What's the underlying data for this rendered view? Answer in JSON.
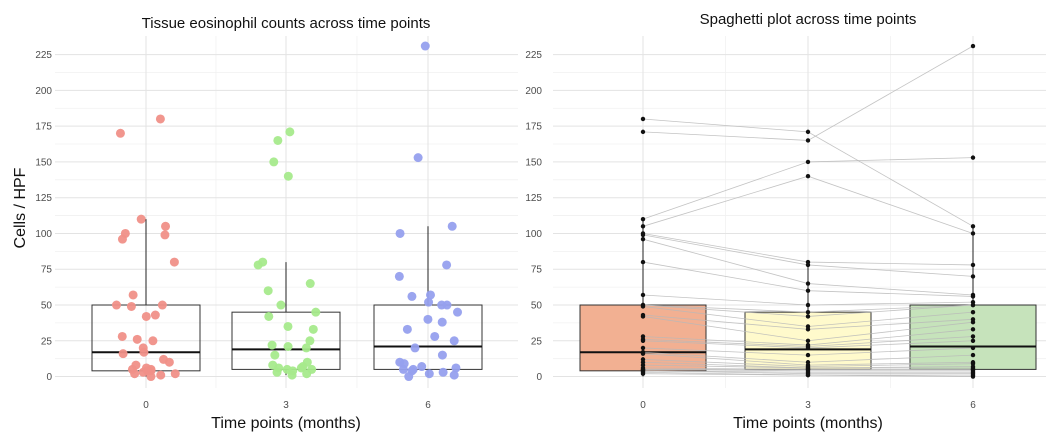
{
  "chart_data": [
    {
      "type": "boxplot-jitter",
      "title": "Tissue eosinophil counts across time points",
      "xlabel": "Time points (months)",
      "ylabel": "Cells / HPF",
      "categories": [
        "0",
        "3",
        "6"
      ],
      "ylim": [
        -8,
        238
      ],
      "yticks": [
        0,
        25,
        50,
        75,
        100,
        125,
        150,
        175,
        200,
        225
      ],
      "grid": true,
      "series_colors": [
        "#f09088",
        "#a6ea8c",
        "#96a0ee"
      ],
      "boxes": [
        {
          "category": "0",
          "q1": 4,
          "median": 17,
          "q3": 50,
          "whisker_low": 0,
          "whisker_high": 110
        },
        {
          "category": "3",
          "q1": 5,
          "median": 19,
          "q3": 45,
          "whisker_low": 1,
          "whisker_high": 80
        },
        {
          "category": "6",
          "q1": 5,
          "median": 21,
          "q3": 50,
          "whisker_low": 0,
          "whisker_high": 105
        }
      ],
      "points": [
        {
          "category": "0",
          "values": [
            180,
            170,
            110,
            105,
            100,
            99,
            96,
            80,
            57,
            50,
            50,
            49,
            43,
            42,
            28,
            26,
            25,
            20,
            17,
            16,
            12,
            10,
            8,
            6,
            5,
            5,
            4,
            4,
            3,
            2,
            2,
            1,
            0
          ]
        },
        {
          "category": "3",
          "values": [
            171,
            165,
            150,
            140,
            80,
            78,
            65,
            60,
            50,
            45,
            42,
            35,
            33,
            25,
            22,
            21,
            20,
            15,
            10,
            8,
            7,
            6,
            6,
            5,
            5,
            4,
            3,
            2,
            1
          ]
        },
        {
          "category": "6",
          "values": [
            231,
            153,
            105,
            100,
            78,
            70,
            57,
            56,
            52,
            50,
            50,
            45,
            40,
            38,
            33,
            28,
            25,
            20,
            15,
            10,
            9,
            7,
            6,
            5,
            5,
            4,
            3,
            2,
            1,
            0
          ]
        }
      ]
    },
    {
      "type": "spaghetti-boxplot",
      "title": "Spaghetti plot across time points",
      "xlabel": "Time points (months)",
      "ylabel": "",
      "categories": [
        "0",
        "3",
        "6"
      ],
      "ylim": [
        -8,
        238
      ],
      "yticks": [
        0,
        25,
        50,
        75,
        100,
        125,
        150,
        175,
        200,
        225
      ],
      "grid": true,
      "box_fill_colors": [
        "#f2b092",
        "#fffacc",
        "#c6e3bb"
      ],
      "boxes": [
        {
          "category": "0",
          "q1": 4,
          "median": 17,
          "q3": 50,
          "whisker_low": 0,
          "whisker_high": 110
        },
        {
          "category": "3",
          "q1": 5,
          "median": 19,
          "q3": 45,
          "whisker_low": 1,
          "whisker_high": 80
        },
        {
          "category": "6",
          "q1": 5,
          "median": 21,
          "q3": 50,
          "whisker_low": 0,
          "whisker_high": 105
        }
      ],
      "subjects": [
        [
          180,
          171,
          105
        ],
        [
          171,
          165,
          231
        ],
        [
          110,
          150,
          153
        ],
        [
          105,
          140,
          100
        ],
        [
          100,
          80,
          78
        ],
        [
          99,
          78,
          70
        ],
        [
          96,
          65,
          57
        ],
        [
          80,
          60,
          56
        ],
        [
          57,
          50,
          52
        ],
        [
          50,
          45,
          50
        ],
        [
          50,
          42,
          50
        ],
        [
          49,
          35,
          45
        ],
        [
          43,
          33,
          40
        ],
        [
          42,
          25,
          38
        ],
        [
          28,
          22,
          33
        ],
        [
          26,
          21,
          28
        ],
        [
          25,
          20,
          25
        ],
        [
          20,
          15,
          20
        ],
        [
          17,
          10,
          15
        ],
        [
          16,
          8,
          10
        ],
        [
          12,
          7,
          9
        ],
        [
          10,
          6,
          7
        ],
        [
          8,
          6,
          6
        ],
        [
          6,
          5,
          5
        ],
        [
          5,
          5,
          5
        ],
        [
          5,
          4,
          4
        ],
        [
          4,
          3,
          3
        ],
        [
          4,
          2,
          2
        ],
        [
          3,
          1,
          1
        ],
        [
          2,
          1,
          0
        ]
      ]
    }
  ]
}
